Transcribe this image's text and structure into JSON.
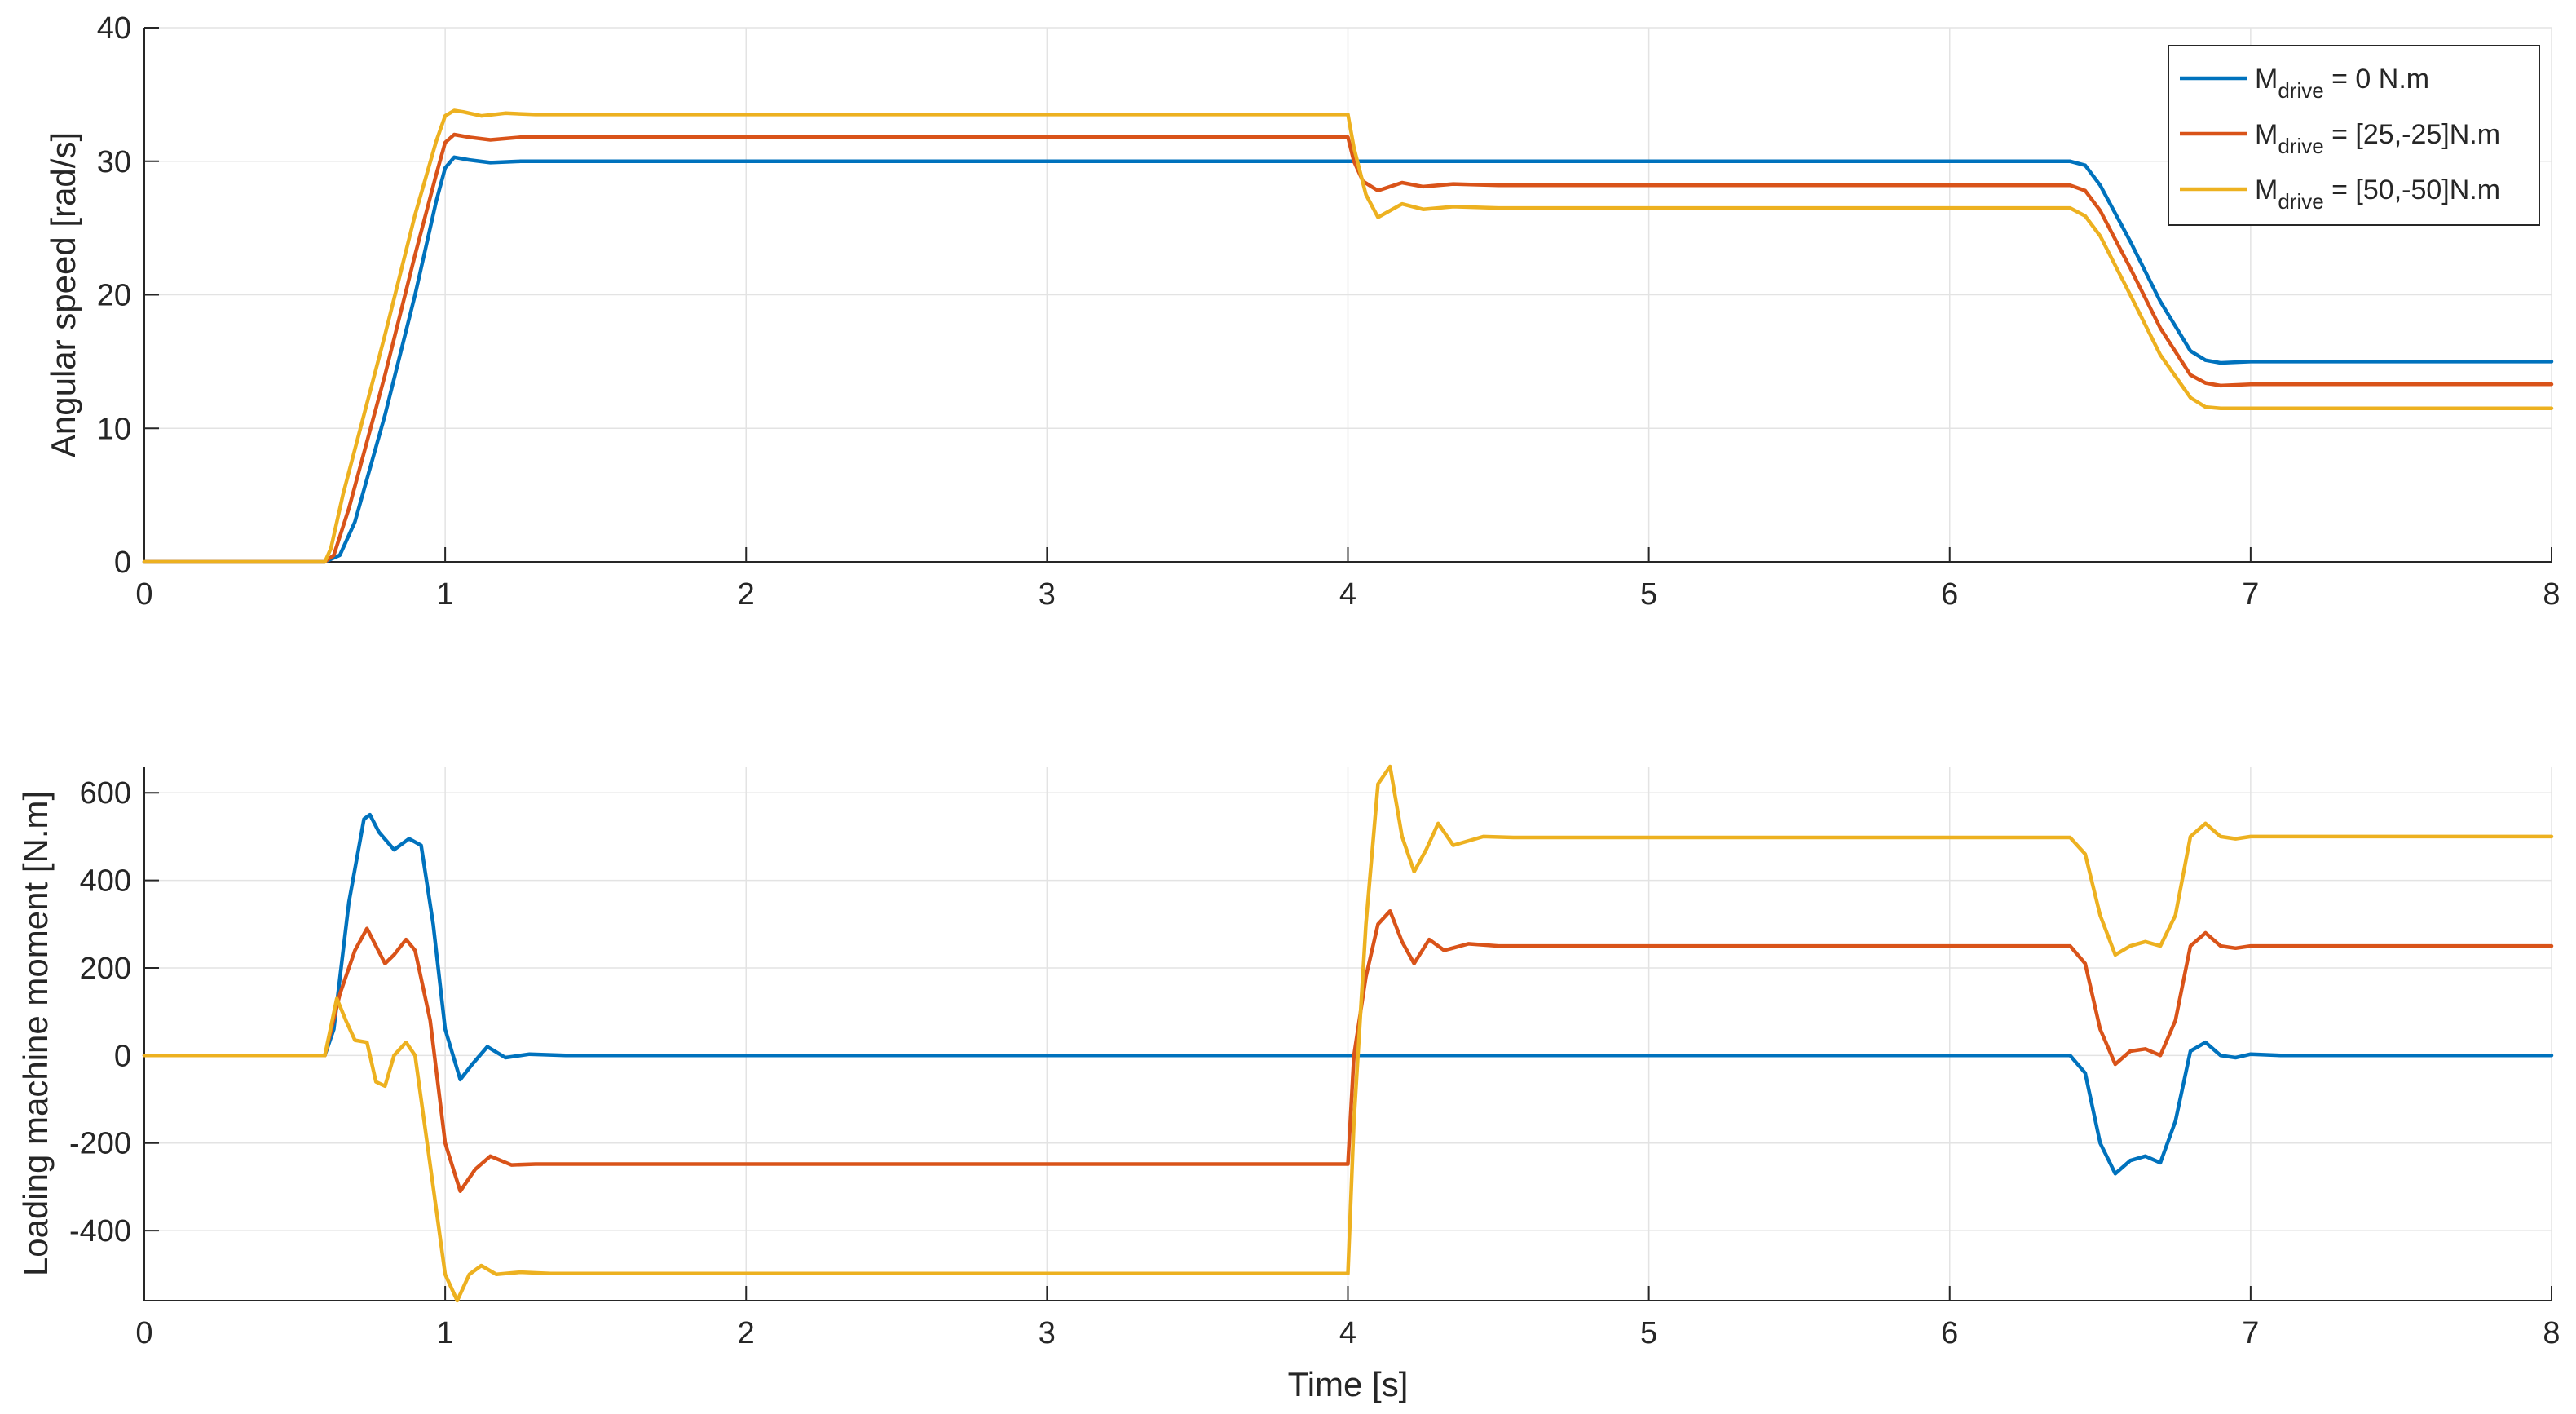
{
  "chart_data": [
    {
      "type": "line",
      "title": "",
      "xlabel": "",
      "ylabel": "Angular speed [rad/s]",
      "xlim": [
        0,
        8
      ],
      "ylim": [
        0,
        40
      ],
      "xticks": [
        0,
        1,
        2,
        3,
        4,
        5,
        6,
        7,
        8
      ],
      "yticks": [
        0,
        10,
        20,
        30,
        40
      ],
      "grid": true,
      "legend_placement": "top-right",
      "legend": [
        {
          "prefix": "M",
          "sub": "drive",
          "suffix": " = 0 N.m",
          "color": "#0072BD"
        },
        {
          "prefix": "M",
          "sub": "drive",
          "suffix": " = [25,-25]N.m",
          "color": "#D95319"
        },
        {
          "prefix": "M",
          "sub": "drive",
          "suffix": " = [50,-50]N.m",
          "color": "#EDB120"
        }
      ],
      "series": [
        {
          "color": "#0072BD",
          "x": [
            0,
            0.6,
            0.65,
            0.7,
            0.8,
            0.9,
            0.97,
            1.0,
            1.03,
            1.08,
            1.15,
            1.25,
            4.0,
            6.4,
            6.45,
            6.5,
            6.6,
            6.7,
            6.8,
            6.85,
            6.9,
            7.0,
            8.0
          ],
          "y": [
            0,
            0,
            0.5,
            3,
            11,
            20,
            27,
            29.5,
            30.3,
            30.1,
            29.9,
            30,
            30,
            30,
            29.7,
            28.2,
            24,
            19.5,
            15.8,
            15.1,
            14.9,
            15,
            15
          ]
        },
        {
          "color": "#D95319",
          "x": [
            0,
            0.6,
            0.63,
            0.68,
            0.8,
            0.9,
            0.97,
            1.0,
            1.03,
            1.08,
            1.15,
            1.25,
            4.0,
            4.02,
            4.05,
            4.1,
            4.18,
            4.25,
            4.35,
            4.5,
            6.4,
            6.45,
            6.5,
            6.6,
            6.7,
            6.8,
            6.85,
            6.9,
            7.0,
            8.0
          ],
          "y": [
            0,
            0,
            0.5,
            4,
            14,
            23,
            29,
            31.4,
            32,
            31.8,
            31.6,
            31.8,
            31.8,
            30,
            28.5,
            27.8,
            28.4,
            28.1,
            28.3,
            28.2,
            28.2,
            27.8,
            26.3,
            22,
            17.5,
            14,
            13.4,
            13.2,
            13.3,
            13.3
          ]
        },
        {
          "color": "#EDB120",
          "x": [
            0,
            0.6,
            0.62,
            0.66,
            0.8,
            0.9,
            0.97,
            1.0,
            1.03,
            1.06,
            1.12,
            1.2,
            1.3,
            4.0,
            4.02,
            4.06,
            4.1,
            4.18,
            4.25,
            4.35,
            4.5,
            6.4,
            6.45,
            6.5,
            6.6,
            6.7,
            6.8,
            6.85,
            6.9,
            7.0,
            8.0
          ],
          "y": [
            0,
            0,
            1,
            5,
            17,
            26,
            31.5,
            33.4,
            33.8,
            33.7,
            33.4,
            33.6,
            33.5,
            33.5,
            31,
            27.5,
            25.8,
            26.8,
            26.4,
            26.6,
            26.5,
            26.5,
            25.9,
            24.4,
            20,
            15.5,
            12.3,
            11.6,
            11.5,
            11.5,
            11.5
          ]
        }
      ]
    },
    {
      "type": "line",
      "title": "",
      "xlabel": "Time [s]",
      "ylabel": "Loading machine moment [N.m]",
      "xlim": [
        0,
        8
      ],
      "ylim": [
        -560,
        660
      ],
      "xticks": [
        0,
        1,
        2,
        3,
        4,
        5,
        6,
        7,
        8
      ],
      "yticks": [
        -400,
        -200,
        0,
        200,
        400,
        600
      ],
      "grid": true,
      "series": [
        {
          "color": "#0072BD",
          "x": [
            0,
            0.6,
            0.63,
            0.68,
            0.73,
            0.75,
            0.78,
            0.83,
            0.88,
            0.92,
            0.96,
            1.0,
            1.05,
            1.09,
            1.14,
            1.2,
            1.28,
            1.4,
            6.4,
            6.45,
            6.5,
            6.55,
            6.6,
            6.65,
            6.7,
            6.75,
            6.8,
            6.85,
            6.9,
            6.95,
            7.0,
            7.1,
            8.0
          ],
          "y": [
            0,
            0,
            60,
            350,
            540,
            550,
            510,
            470,
            495,
            480,
            300,
            60,
            -55,
            -20,
            20,
            -5,
            3,
            0,
            0,
            -40,
            -200,
            -270,
            -240,
            -230,
            -245,
            -150,
            10,
            30,
            0,
            -5,
            3,
            0,
            0
          ]
        },
        {
          "color": "#D95319",
          "x": [
            0,
            0.6,
            0.65,
            0.7,
            0.74,
            0.77,
            0.8,
            0.83,
            0.87,
            0.9,
            0.95,
            1.0,
            1.05,
            1.1,
            1.15,
            1.22,
            1.3,
            4.0,
            4.02,
            4.06,
            4.1,
            4.14,
            4.18,
            4.22,
            4.27,
            4.32,
            4.4,
            4.5,
            6.4,
            6.45,
            6.5,
            6.55,
            6.6,
            6.65,
            6.7,
            6.75,
            6.8,
            6.85,
            6.9,
            6.95,
            7.0,
            8.0
          ],
          "y": [
            0,
            0,
            140,
            240,
            290,
            250,
            210,
            230,
            265,
            240,
            80,
            -200,
            -310,
            -260,
            -230,
            -250,
            -248,
            -248,
            0,
            180,
            300,
            330,
            260,
            210,
            265,
            240,
            255,
            250,
            250,
            210,
            60,
            -20,
            10,
            15,
            0,
            80,
            250,
            280,
            250,
            245,
            250,
            250
          ]
        },
        {
          "color": "#EDB120",
          "x": [
            0,
            0.6,
            0.64,
            0.67,
            0.7,
            0.74,
            0.77,
            0.8,
            0.83,
            0.87,
            0.9,
            0.95,
            1.0,
            1.04,
            1.08,
            1.12,
            1.17,
            1.25,
            1.35,
            4.0,
            4.02,
            4.06,
            4.1,
            4.14,
            4.18,
            4.22,
            4.26,
            4.3,
            4.35,
            4.45,
            4.55,
            6.4,
            6.45,
            6.5,
            6.55,
            6.6,
            6.65,
            6.7,
            6.75,
            6.8,
            6.85,
            6.9,
            6.95,
            7.0,
            8.0
          ],
          "y": [
            0,
            0,
            130,
            80,
            35,
            30,
            -60,
            -70,
            0,
            30,
            0,
            -250,
            -500,
            -560,
            -500,
            -480,
            -500,
            -495,
            -498,
            -498,
            -150,
            300,
            620,
            660,
            500,
            420,
            470,
            530,
            480,
            500,
            498,
            498,
            460,
            320,
            230,
            250,
            260,
            250,
            320,
            500,
            530,
            500,
            495,
            500,
            500
          ]
        }
      ]
    }
  ]
}
